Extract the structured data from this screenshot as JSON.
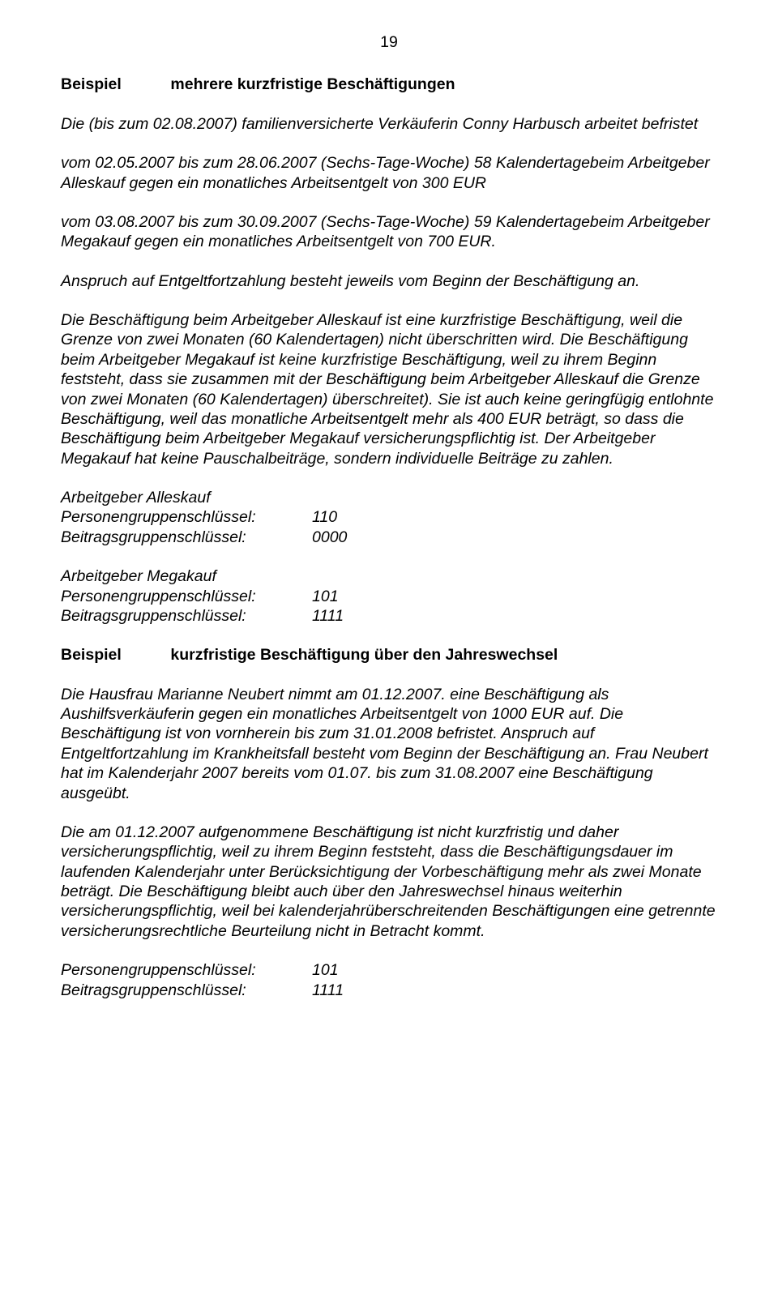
{
  "page_number": "19",
  "heading1_label": "Beispiel",
  "heading1_text": "mehrere kurzfristige Beschäftigungen",
  "p1": "Die (bis zum 02.08.2007) familienversicherte Verkäuferin Conny Harbusch arbeitet befristet",
  "p2": "vom 02.05.2007 bis zum 28.06.2007 (Sechs-Tage-Woche)  58 Kalendertagebeim Arbeitgeber Alleskauf gegen ein monatliches Arbeitsentgelt von     300 EUR",
  "p3": "vom 03.08.2007 bis zum 30.09.2007 (Sechs-Tage-Woche)  59 Kalendertagebeim Arbeitgeber Megakauf gegen ein monatliches Arbeitsentgelt von    700 EUR.",
  "p4": "Anspruch auf Entgeltfortzahlung besteht jeweils vom Beginn der Beschäftigung an.",
  "p5": "Die Beschäftigung beim Arbeitgeber Alleskauf ist eine kurzfristige Beschäftigung, weil die Grenze von zwei Monaten (60 Kalendertagen) nicht überschritten wird. Die Beschäftigung beim Arbeitgeber Megakauf ist keine kurzfristige Beschäftigung, weil zu ihrem Beginn feststeht, dass sie zusammen mit der Beschäftigung beim Arbeitgeber Alleskauf die Grenze von zwei Monaten (60 Kalendertagen) überschreitet). Sie ist auch keine geringfügig entlohnte Beschäftigung, weil das monatliche Arbeitsentgelt mehr als 400 EUR beträgt, so dass die Beschäftigung beim Arbeitgeber Megakauf versicherungspflichtig ist. Der Arbeitgeber Megakauf hat keine Pauschalbeiträge, sondern individuelle Beiträge zu zahlen.",
  "group1": {
    "title": "Arbeitgeber Alleskauf",
    "k1": "Personengruppenschlüssel:",
    "v1": "110",
    "k2": "Beitragsgruppenschlüssel:",
    "v2": "0000"
  },
  "group2": {
    "title": "Arbeitgeber Megakauf",
    "k1": "Personengruppenschlüssel:",
    "v1": "101",
    "k2": "Beitragsgruppenschlüssel:",
    "v2": "1111"
  },
  "heading2_label": "Beispiel",
  "heading2_text": "kurzfristige Beschäftigung über den Jahreswechsel",
  "p6": "Die Hausfrau Marianne Neubert nimmt am 01.12.2007. eine Beschäftigung als Aushilfsverkäuferin gegen ein monatliches Arbeitsentgelt von 1000 EUR auf. Die Beschäftigung ist von vornherein bis zum 31.01.2008 befristet. Anspruch auf Entgeltfortzahlung im Krankheitsfall besteht vom Beginn der Beschäftigung an. Frau Neubert hat im Kalenderjahr 2007 bereits vom 01.07. bis zum 31.08.2007 eine Beschäftigung ausgeübt.",
  "p7": "Die am 01.12.2007 aufgenommene Beschäftigung ist nicht kurzfristig und daher versicherungspflichtig, weil zu ihrem Beginn feststeht, dass die Beschäftigungsdauer im laufenden Kalenderjahr unter Berücksichtigung der Vorbeschäftigung mehr als zwei Monate beträgt. Die Beschäftigung bleibt auch über den Jahreswechsel hinaus weiterhin versicherungspflichtig, weil bei kalenderjahrüberschreitenden Beschäftigungen eine getrennte versicherungsrechtliche Beurteilung nicht in Betracht kommt.",
  "group3": {
    "k1": "Personengruppenschlüssel:",
    "v1": "101",
    "k2": "Beitragsgruppenschlüssel:",
    "v2": "1111"
  }
}
